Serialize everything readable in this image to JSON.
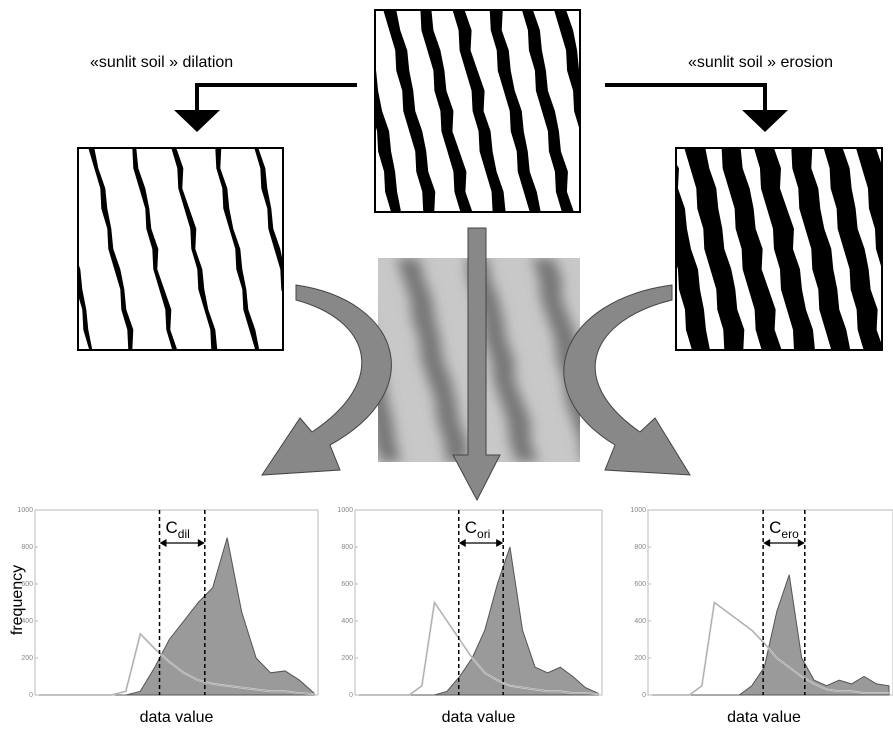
{
  "labels": {
    "dilation": "«sunlit soil » dilation",
    "erosion": "«sunlit soil » erosion"
  },
  "chart_data": [
    {
      "type": "line",
      "ylabel": "frequency",
      "xlabel": "data value",
      "annotation": "C",
      "annotation_sub": "dil",
      "categories": [
        null,
        null,
        null,
        null,
        null,
        null,
        null,
        null,
        null,
        null,
        null,
        null,
        null,
        null,
        null,
        null,
        null,
        null,
        null,
        null
      ],
      "ylim": [
        0,
        1000
      ],
      "yticks": [
        0,
        200,
        400,
        600,
        800,
        1000
      ],
      "series": [
        {
          "color": "#9a9a9a",
          "values": [
            0,
            0,
            0,
            0,
            0,
            0,
            0,
            20,
            150,
            300,
            400,
            500,
            580,
            850,
            450,
            200,
            120,
            130,
            80,
            10
          ]
        },
        {
          "color": "#d0d0d0",
          "values": [
            0,
            0,
            0,
            0,
            0,
            0,
            20,
            330,
            250,
            180,
            120,
            80,
            60,
            50,
            40,
            30,
            20,
            20,
            10,
            5
          ]
        }
      ]
    },
    {
      "type": "line",
      "xlabel": "data value",
      "annotation": "C",
      "annotation_sub": "ori",
      "categories": [
        null,
        null,
        null,
        null,
        null,
        null,
        null,
        null,
        null,
        null,
        null,
        null,
        null,
        null,
        null,
        null,
        null,
        null,
        null,
        null
      ],
      "ylim": [
        0,
        1000
      ],
      "yticks": [
        0,
        200,
        400,
        600,
        800,
        1000
      ],
      "series": [
        {
          "color": "#9a9a9a",
          "values": [
            0,
            0,
            0,
            0,
            0,
            0,
            0,
            20,
            100,
            200,
            350,
            600,
            800,
            350,
            150,
            120,
            150,
            100,
            40,
            10
          ]
        },
        {
          "color": "#d0d0d0",
          "values": [
            0,
            0,
            0,
            0,
            0,
            50,
            500,
            400,
            300,
            200,
            120,
            80,
            50,
            40,
            30,
            20,
            20,
            10,
            10,
            5
          ]
        }
      ]
    },
    {
      "type": "line",
      "xlabel": "data value",
      "annotation": "C",
      "annotation_sub": "ero",
      "categories": [
        null,
        null,
        null,
        null,
        null,
        null,
        null,
        null,
        null,
        null,
        null,
        null,
        null,
        null,
        null,
        null,
        null,
        null,
        null,
        null
      ],
      "ylim": [
        0,
        1000
      ],
      "yticks": [
        0,
        200,
        400,
        600,
        800,
        1000
      ],
      "series": [
        {
          "color": "#9a9a9a",
          "values": [
            0,
            0,
            0,
            0,
            0,
            0,
            0,
            0,
            50,
            150,
            450,
            650,
            200,
            80,
            50,
            80,
            60,
            100,
            60,
            50
          ]
        },
        {
          "color": "#d0d0d0",
          "values": [
            0,
            0,
            0,
            0,
            50,
            500,
            450,
            400,
            350,
            280,
            200,
            150,
            100,
            60,
            30,
            20,
            20,
            10,
            10,
            10
          ]
        }
      ]
    }
  ]
}
